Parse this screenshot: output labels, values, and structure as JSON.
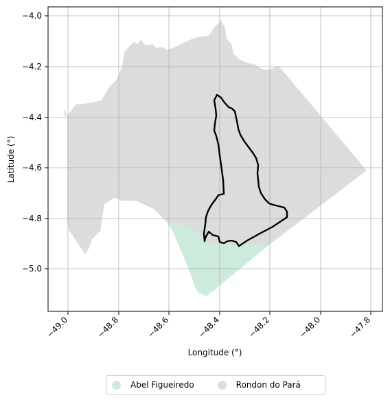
{
  "chart_data": {
    "type": "map",
    "title": "",
    "xlabel": "Longitude (°)",
    "ylabel": "Latitude (°)",
    "xlim": [
      -49.07,
      -47.77
    ],
    "ylim": [
      -5.17,
      -3.97
    ],
    "x_ticks": [
      "−49.0",
      "−48.8",
      "−48.6",
      "−48.4",
      "−48.2",
      "−48.0",
      "−47.8"
    ],
    "y_ticks": [
      "−4.0",
      "−4.2",
      "−4.4",
      "−4.6",
      "−4.8",
      "−5.0"
    ],
    "grid": true,
    "legend_position": "bottom-center",
    "regions": [
      {
        "name": "Abel Figueiredo",
        "color": "#cdebdc"
      },
      {
        "name": "Rondon do Pará",
        "color": "#dcdcdc"
      }
    ],
    "highlighted_area": {
      "outline_color": "#000000"
    }
  }
}
